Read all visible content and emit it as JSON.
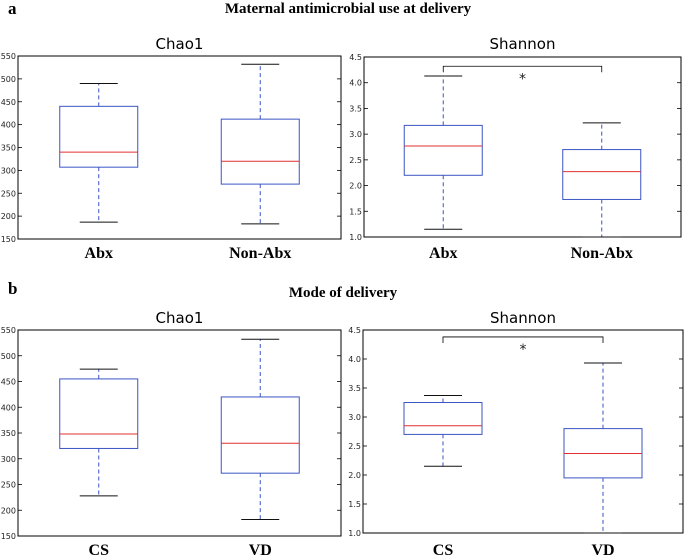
{
  "figure": {
    "section_a": {
      "letter": "a",
      "title": "Maternal antimicrobial use at delivery"
    },
    "section_b": {
      "letter": "b",
      "title": "Mode of delivery"
    }
  },
  "colors": {
    "box": "#3b55c4",
    "median": "#e03030",
    "whisker": "#3b55c4",
    "cap": "#111111",
    "frame": "#000000",
    "bracket": "#000000"
  },
  "chart_data": [
    {
      "id": "a-chao1",
      "section": "a",
      "type": "box",
      "title": "Chao1",
      "categories": [
        "Abx",
        "Non-Abx"
      ],
      "ylim": [
        150,
        550
      ],
      "yticks": [
        150,
        200,
        250,
        300,
        350,
        400,
        450,
        500,
        550
      ],
      "boxes": [
        {
          "whisker_low": 187,
          "q1": 307,
          "median": 340,
          "q3": 440,
          "whisker_high": 490
        },
        {
          "whisker_low": 183,
          "q1": 270,
          "median": 320,
          "q3": 412,
          "whisker_high": 532
        }
      ],
      "significance": null
    },
    {
      "id": "a-shannon",
      "section": "a",
      "type": "box",
      "title": "Shannon",
      "categories": [
        "Abx",
        "Non-Abx"
      ],
      "ylim": [
        1.0,
        4.5
      ],
      "yticks": [
        1.0,
        1.5,
        2.0,
        2.5,
        3.0,
        3.5,
        4.0,
        4.5
      ],
      "boxes": [
        {
          "whisker_low": 1.15,
          "q1": 2.2,
          "median": 2.77,
          "q3": 3.17,
          "whisker_high": 4.13
        },
        {
          "whisker_low": 1.0,
          "q1": 1.73,
          "median": 2.27,
          "q3": 2.7,
          "whisker_high": 3.22
        }
      ],
      "significance": {
        "label": "*",
        "y": 4.32
      }
    },
    {
      "id": "b-chao1",
      "section": "b",
      "type": "box",
      "title": "Chao1",
      "categories": [
        "CS",
        "VD"
      ],
      "ylim": [
        150,
        550
      ],
      "yticks": [
        150,
        200,
        250,
        300,
        350,
        400,
        450,
        500,
        550
      ],
      "boxes": [
        {
          "whisker_low": 228,
          "q1": 320,
          "median": 348,
          "q3": 455,
          "whisker_high": 474
        },
        {
          "whisker_low": 182,
          "q1": 272,
          "median": 330,
          "q3": 420,
          "whisker_high": 532
        }
      ],
      "significance": null
    },
    {
      "id": "b-shannon",
      "section": "b",
      "type": "box",
      "title": "Shannon",
      "categories": [
        "CS",
        "VD"
      ],
      "ylim": [
        1.0,
        4.5
      ],
      "yticks": [
        1.0,
        1.5,
        2.0,
        2.5,
        3.0,
        3.5,
        4.0,
        4.5
      ],
      "boxes": [
        {
          "whisker_low": 2.15,
          "q1": 2.7,
          "median": 2.85,
          "q3": 3.25,
          "whisker_high": 3.37
        },
        {
          "whisker_low": 1.0,
          "q1": 1.95,
          "median": 2.37,
          "q3": 2.8,
          "whisker_high": 3.93
        }
      ],
      "significance": {
        "label": "*",
        "y": 4.38
      }
    }
  ]
}
